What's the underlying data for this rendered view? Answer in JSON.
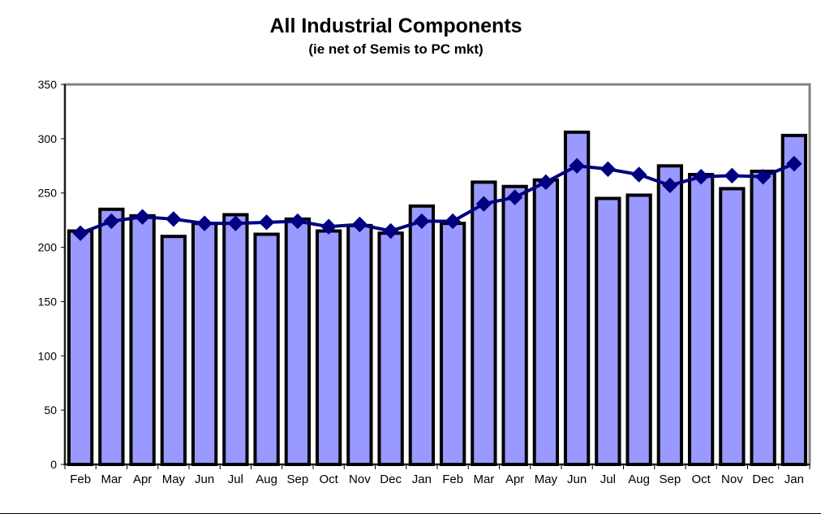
{
  "chart_data": {
    "type": "bar",
    "title": "All Industrial Components",
    "subtitle": "(ie net of Semis to PC mkt)",
    "xlabel": "",
    "ylabel": "",
    "ylim": [
      0,
      350
    ],
    "yticks": [
      0,
      50,
      100,
      150,
      200,
      250,
      300,
      350
    ],
    "grid": false,
    "legend": "none",
    "categories": [
      "Feb",
      "Mar",
      "Apr",
      "May",
      "Jun",
      "Jul",
      "Aug",
      "Sep",
      "Oct",
      "Nov",
      "Dec",
      "Jan",
      "Feb",
      "Mar",
      "Apr",
      "May",
      "Jun",
      "Jul",
      "Aug",
      "Sep",
      "Oct",
      "Nov",
      "Dec",
      "Jan"
    ],
    "series": [
      {
        "type": "bar",
        "values": [
          215,
          235,
          229,
          210,
          222,
          230,
          212,
          226,
          215,
          220,
          213,
          238,
          222,
          260,
          256,
          262,
          306,
          245,
          248,
          275,
          267,
          254,
          270,
          303
        ],
        "color": "#9999ff",
        "stroke": "#000000"
      },
      {
        "type": "line",
        "values": [
          213,
          224,
          228,
          226,
          222,
          222,
          223,
          224,
          219,
          221,
          215,
          224,
          224,
          240,
          246,
          260,
          275,
          272,
          267,
          257,
          265,
          266,
          265,
          277
        ],
        "color": "#000080",
        "marker": "diamond"
      }
    ]
  }
}
